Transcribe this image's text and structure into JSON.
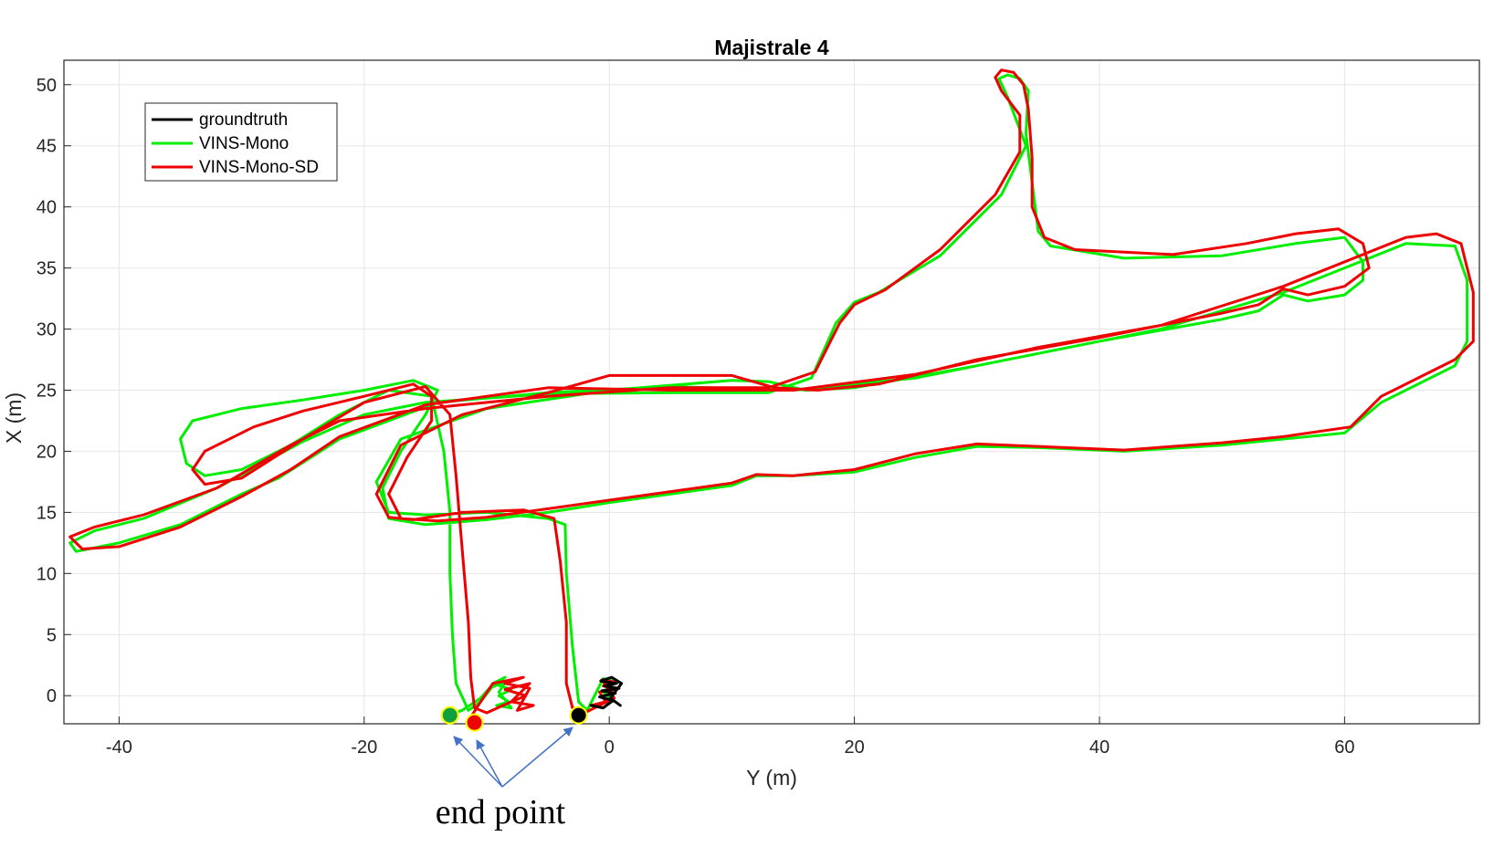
{
  "chart_data": {
    "type": "line",
    "title": "Majistrale 4",
    "xlabel": "Y (m)",
    "ylabel": "X (m)",
    "xlim": [
      -44.5,
      71
    ],
    "ylim": [
      -2.3,
      52
    ],
    "xticks": [
      -40,
      -20,
      0,
      20,
      40,
      60
    ],
    "yticks": [
      0,
      5,
      10,
      15,
      20,
      25,
      30,
      35,
      40,
      45,
      50
    ],
    "grid": true,
    "legend": {
      "position": "top-left"
    },
    "annotation": {
      "text": "end point"
    },
    "series": [
      {
        "name": "groundtruth",
        "color": "#000000",
        "points": [
          [
            -1.5,
            -0.8
          ],
          [
            -0.5,
            -1.0
          ],
          [
            0.3,
            -0.4
          ],
          [
            -0.8,
            -0.1
          ],
          [
            0.5,
            0.2
          ],
          [
            -0.6,
            0.4
          ],
          [
            0.8,
            0.6
          ],
          [
            -0.4,
            0.8
          ],
          [
            0.6,
            1.0
          ],
          [
            -0.7,
            1.2
          ],
          [
            0.2,
            1.5
          ],
          [
            1.0,
            1.0
          ],
          [
            0.1,
            -0.2
          ],
          [
            0.9,
            -0.8
          ]
        ],
        "end": [
          -2.5,
          -1.6
        ]
      },
      {
        "name": "VINS-Mono",
        "color": "#00ee00",
        "points": [
          [
            -1.5,
            -0.8
          ],
          [
            -0.5,
            -1.0
          ],
          [
            0.3,
            -0.4
          ],
          [
            -0.6,
            0.4
          ],
          [
            0.5,
            0.6
          ],
          [
            -0.3,
            0.9
          ],
          [
            0.3,
            1.2
          ],
          [
            -0.5,
            1.4
          ],
          [
            -1.8,
            -1.2
          ],
          [
            -2.5,
            -0.5
          ],
          [
            -3.0,
            4.0
          ],
          [
            -3.5,
            10.0
          ],
          [
            -3.6,
            14.0
          ],
          [
            -5.0,
            14.5
          ],
          [
            -10.0,
            15.0
          ],
          [
            -15.0,
            14.8
          ],
          [
            -18.0,
            15.0
          ],
          [
            -19.0,
            17.5
          ],
          [
            -17.0,
            21.0
          ],
          [
            -10.0,
            23.5
          ],
          [
            0.0,
            25.0
          ],
          [
            10.0,
            25.8
          ],
          [
            13.0,
            25.7
          ],
          [
            16.0,
            25.0
          ],
          [
            20.0,
            25.2
          ],
          [
            30.0,
            27.0
          ],
          [
            40.0,
            29.0
          ],
          [
            50.0,
            30.8
          ],
          [
            53.0,
            31.5
          ],
          [
            55.0,
            32.8
          ],
          [
            57.0,
            32.3
          ],
          [
            60.0,
            32.8
          ],
          [
            61.5,
            34.0
          ],
          [
            61.5,
            35.5
          ],
          [
            60.0,
            37.5
          ],
          [
            56.0,
            37.0
          ],
          [
            50.0,
            36.0
          ],
          [
            42.0,
            35.8
          ],
          [
            36.0,
            36.8
          ],
          [
            35.0,
            38.0
          ],
          [
            34.5,
            42.0
          ],
          [
            34.0,
            46.0
          ],
          [
            34.2,
            49.5
          ],
          [
            33.5,
            50.5
          ],
          [
            32.5,
            50.8
          ],
          [
            31.8,
            50.5
          ],
          [
            32.5,
            49.0
          ],
          [
            34.0,
            45.0
          ],
          [
            32.0,
            41.0
          ],
          [
            27.0,
            36.0
          ],
          [
            22.0,
            33.0
          ],
          [
            20.0,
            32.2
          ],
          [
            18.5,
            30.5
          ],
          [
            16.5,
            26.0
          ],
          [
            13.0,
            24.8
          ],
          [
            5.0,
            24.8
          ],
          [
            -5.0,
            24.7
          ],
          [
            -15.0,
            24.0
          ],
          [
            -20.0,
            23.0
          ],
          [
            -25.0,
            20.8
          ],
          [
            -32.0,
            17.0
          ],
          [
            -38.0,
            14.5
          ],
          [
            -42.0,
            13.5
          ],
          [
            -44.0,
            12.5
          ],
          [
            -43.5,
            11.8
          ],
          [
            -40.0,
            12.5
          ],
          [
            -35.0,
            14.0
          ],
          [
            -30.0,
            16.5
          ],
          [
            -27.0,
            17.8
          ],
          [
            -22.0,
            21.0
          ],
          [
            -14.0,
            24.0
          ],
          [
            -5.0,
            24.8
          ],
          [
            5.0,
            25.3
          ],
          [
            15.0,
            25.0
          ],
          [
            25.0,
            26.0
          ],
          [
            35.0,
            28.0
          ],
          [
            45.0,
            30.0
          ],
          [
            55.0,
            33.0
          ],
          [
            65.0,
            37.0
          ],
          [
            69.0,
            36.8
          ],
          [
            70.0,
            34.0
          ],
          [
            70.0,
            29.0
          ],
          [
            69.0,
            27.0
          ],
          [
            63.0,
            24.0
          ],
          [
            60.0,
            21.5
          ],
          [
            55.0,
            21.0
          ],
          [
            50.0,
            20.5
          ],
          [
            42.0,
            20.0
          ],
          [
            35.0,
            20.3
          ],
          [
            30.0,
            20.4
          ],
          [
            25.0,
            19.5
          ],
          [
            20.0,
            18.3
          ],
          [
            15.0,
            18.0
          ],
          [
            12.0,
            18.0
          ],
          [
            10.0,
            17.2
          ],
          [
            5.0,
            16.5
          ],
          [
            0.0,
            15.8
          ],
          [
            -5.0,
            15.0
          ],
          [
            -10.0,
            14.4
          ],
          [
            -15.0,
            14.0
          ],
          [
            -18.0,
            14.5
          ],
          [
            -18.5,
            17.0
          ],
          [
            -17.0,
            20.0
          ],
          [
            -15.0,
            23.0
          ],
          [
            -14.0,
            25.0
          ],
          [
            -16.0,
            25.8
          ],
          [
            -20.0,
            25.0
          ],
          [
            -25.0,
            24.2
          ],
          [
            -30.0,
            23.5
          ],
          [
            -34.0,
            22.5
          ],
          [
            -35.0,
            21.0
          ],
          [
            -34.5,
            19.0
          ],
          [
            -33.0,
            18.0
          ],
          [
            -30.0,
            18.5
          ],
          [
            -26.0,
            20.5
          ],
          [
            -22.0,
            23.0
          ],
          [
            -18.0,
            25.0
          ],
          [
            -14.5,
            24.5
          ],
          [
            -13.5,
            20.0
          ],
          [
            -13.0,
            15.0
          ],
          [
            -13.0,
            10.0
          ],
          [
            -12.8,
            5.0
          ],
          [
            -12.5,
            1.0
          ],
          [
            -11.5,
            -1.2
          ],
          [
            -10.5,
            -0.5
          ],
          [
            -9.5,
            0.8
          ],
          [
            -8.5,
            1.5
          ],
          [
            -9.5,
            1.0
          ],
          [
            -8.0,
            0.5
          ],
          [
            -9.0,
            0.0
          ],
          [
            -8.2,
            -0.5
          ],
          [
            -9.2,
            -0.8
          ],
          [
            -8.0,
            -1.0
          ],
          [
            -9.0,
            0.3
          ],
          [
            -8.4,
            1.2
          ],
          [
            -9.8,
            0.6
          ],
          [
            -10.5,
            -0.2
          ],
          [
            -12.0,
            -1.2
          ],
          [
            -13.2,
            -1.6
          ]
        ],
        "end": [
          -13.0,
          -1.6
        ]
      },
      {
        "name": "VINS-Mono-SD",
        "color": "#ee0000",
        "points": [
          [
            -1.5,
            -0.8
          ],
          [
            -0.3,
            -0.5
          ],
          [
            -0.8,
            0.3
          ],
          [
            0.4,
            0.5
          ],
          [
            -0.5,
            0.8
          ],
          [
            0.5,
            1.1
          ],
          [
            -0.6,
            1.3
          ],
          [
            0.4,
            -0.2
          ],
          [
            -1.8,
            -1.3
          ],
          [
            -3.0,
            -1.0
          ],
          [
            -3.5,
            1.0
          ],
          [
            -3.5,
            6.0
          ],
          [
            -4.0,
            11.0
          ],
          [
            -4.5,
            14.5
          ],
          [
            -7.0,
            15.2
          ],
          [
            -12.0,
            15.0
          ],
          [
            -16.0,
            14.4
          ],
          [
            -18.0,
            14.6
          ],
          [
            -19.0,
            16.5
          ],
          [
            -17.0,
            20.5
          ],
          [
            -12.0,
            23.0
          ],
          [
            -5.0,
            24.8
          ],
          [
            0.0,
            26.2
          ],
          [
            10.0,
            26.2
          ],
          [
            13.5,
            25.2
          ],
          [
            17.0,
            25.0
          ],
          [
            22.0,
            25.5
          ],
          [
            30.0,
            27.5
          ],
          [
            40.0,
            29.3
          ],
          [
            50.0,
            31.3
          ],
          [
            53.0,
            32.0
          ],
          [
            55.0,
            33.3
          ],
          [
            57.0,
            32.8
          ],
          [
            60.0,
            33.5
          ],
          [
            62.0,
            35.0
          ],
          [
            61.5,
            37.0
          ],
          [
            59.5,
            38.2
          ],
          [
            56.0,
            37.8
          ],
          [
            52.0,
            37.0
          ],
          [
            46.0,
            36.1
          ],
          [
            38.0,
            36.5
          ],
          [
            35.5,
            37.5
          ],
          [
            34.5,
            40.0
          ],
          [
            34.5,
            44.0
          ],
          [
            34.2,
            48.0
          ],
          [
            33.8,
            50.0
          ],
          [
            33.0,
            51.0
          ],
          [
            32.0,
            51.2
          ],
          [
            31.5,
            50.6
          ],
          [
            32.0,
            49.5
          ],
          [
            33.5,
            47.5
          ],
          [
            33.5,
            44.5
          ],
          [
            31.5,
            41.0
          ],
          [
            27.0,
            36.5
          ],
          [
            22.5,
            33.2
          ],
          [
            20.0,
            32.0
          ],
          [
            18.8,
            30.5
          ],
          [
            16.8,
            26.5
          ],
          [
            13.0,
            25.2
          ],
          [
            5.0,
            25.2
          ],
          [
            -5.0,
            24.5
          ],
          [
            -15.0,
            23.5
          ],
          [
            -22.0,
            22.5
          ],
          [
            -26.0,
            20.5
          ],
          [
            -32.0,
            17.0
          ],
          [
            -38.0,
            14.8
          ],
          [
            -42.0,
            13.8
          ],
          [
            -44.0,
            13.0
          ],
          [
            -43.0,
            12.0
          ],
          [
            -40.0,
            12.2
          ],
          [
            -35.0,
            13.8
          ],
          [
            -30.0,
            16.3
          ],
          [
            -26.0,
            18.5
          ],
          [
            -22.0,
            21.2
          ],
          [
            -15.0,
            23.8
          ],
          [
            -5.0,
            25.2
          ],
          [
            5.0,
            25.0
          ],
          [
            15.0,
            25.0
          ],
          [
            25.0,
            26.3
          ],
          [
            35.0,
            28.5
          ],
          [
            45.0,
            30.3
          ],
          [
            55.0,
            33.5
          ],
          [
            65.0,
            37.5
          ],
          [
            67.5,
            37.8
          ],
          [
            69.5,
            37.0
          ],
          [
            70.5,
            33.0
          ],
          [
            70.5,
            29.0
          ],
          [
            69.0,
            27.5
          ],
          [
            63.0,
            24.5
          ],
          [
            60.5,
            22.0
          ],
          [
            55.0,
            21.2
          ],
          [
            50.0,
            20.7
          ],
          [
            42.0,
            20.1
          ],
          [
            35.0,
            20.4
          ],
          [
            30.0,
            20.6
          ],
          [
            25.0,
            19.8
          ],
          [
            20.0,
            18.5
          ],
          [
            15.0,
            18.0
          ],
          [
            12.0,
            18.1
          ],
          [
            10.0,
            17.4
          ],
          [
            5.0,
            16.7
          ],
          [
            0.0,
            16.0
          ],
          [
            -5.0,
            15.3
          ],
          [
            -10.0,
            14.6
          ],
          [
            -14.0,
            14.3
          ],
          [
            -17.0,
            14.5
          ],
          [
            -18.0,
            16.5
          ],
          [
            -16.5,
            19.5
          ],
          [
            -14.5,
            22.5
          ],
          [
            -14.5,
            24.5
          ],
          [
            -16.0,
            25.5
          ],
          [
            -20.0,
            24.5
          ],
          [
            -25.0,
            23.3
          ],
          [
            -29.0,
            22.0
          ],
          [
            -33.0,
            20.0
          ],
          [
            -34.0,
            18.5
          ],
          [
            -33.0,
            17.3
          ],
          [
            -30.0,
            17.8
          ],
          [
            -25.0,
            21.0
          ],
          [
            -20.0,
            24.0
          ],
          [
            -15.0,
            25.3
          ],
          [
            -13.0,
            23.0
          ],
          [
            -12.5,
            18.0
          ],
          [
            -12.0,
            12.0
          ],
          [
            -11.5,
            6.0
          ],
          [
            -11.3,
            1.5
          ],
          [
            -11.0,
            -1.0
          ],
          [
            -10.0,
            -1.4
          ],
          [
            -8.0,
            -0.5
          ],
          [
            -6.5,
            1.0
          ],
          [
            -8.5,
            0.5
          ],
          [
            -6.8,
            0.0
          ],
          [
            -8.0,
            -0.5
          ],
          [
            -6.2,
            -0.8
          ],
          [
            -7.5,
            -1.2
          ],
          [
            -6.5,
            0.6
          ],
          [
            -8.5,
            1.0
          ],
          [
            -7.0,
            1.5
          ],
          [
            -9.5,
            1.0
          ],
          [
            -10.5,
            -0.5
          ],
          [
            -11.2,
            -1.6
          ]
        ],
        "end": [
          -11.0,
          -2.2
        ]
      }
    ]
  }
}
